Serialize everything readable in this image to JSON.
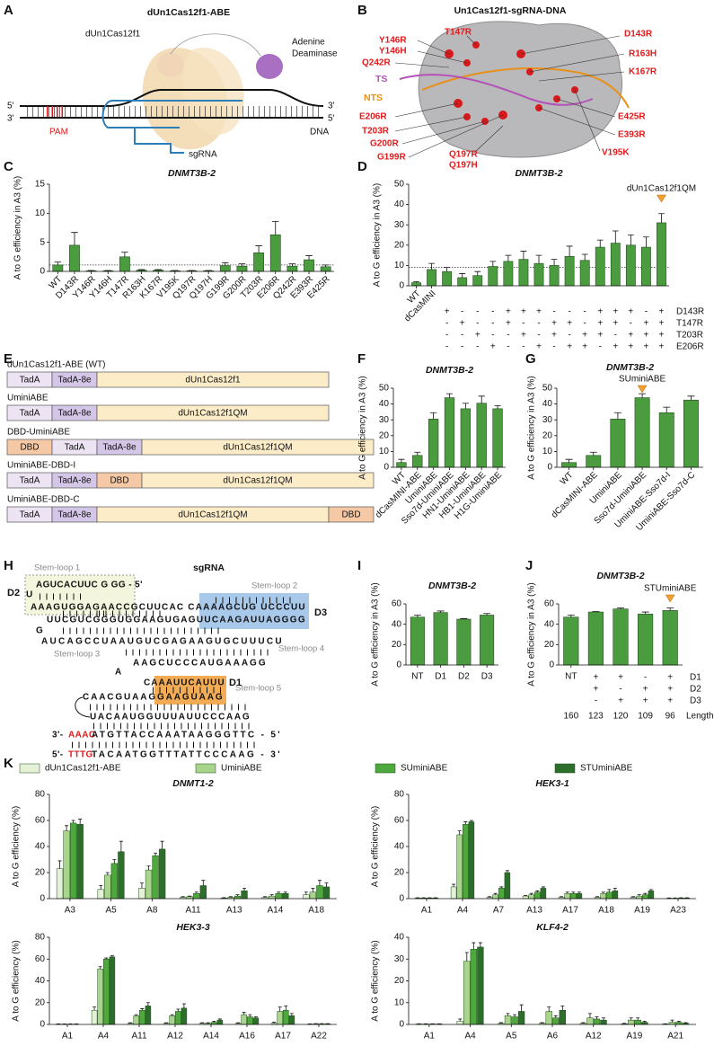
{
  "panel_labels": [
    "A",
    "B",
    "C",
    "D",
    "E",
    "F",
    "G",
    "H",
    "I",
    "J",
    "K"
  ],
  "diagram_a": {
    "title": "dUn1Cas12f1-ABE",
    "protein_label": "dUn1Cas12f1",
    "deaminase_label": [
      "Adenine",
      "Deaminase"
    ],
    "ends": [
      "5'",
      "3'",
      "3'",
      "5'"
    ],
    "pam_label": "PAM",
    "dna_label": "DNA",
    "sgrna_label": "sgRNA"
  },
  "diagram_b": {
    "title": "Un1Cas12f1-sgRNA-DNA",
    "labels": [
      "Y146R",
      "Y146H",
      "T147R",
      "D143R",
      "Q242R",
      "R163H",
      "K167R",
      "TS",
      "NTS",
      "E206R",
      "T203R",
      "G200R",
      "G199R",
      "Q197R",
      "Q197H",
      "E425R",
      "E393R",
      "V195K"
    ]
  },
  "diagram_e": {
    "segment_colors": {
      "TadA": "#ece3f3",
      "TadA-8e": "#d3c6e6",
      "dUn1Cas12f1": "#fcecc8",
      "dUn1Cas12f1QM": "#fcecc8",
      "DBD": "#f6c9a6"
    },
    "constructs": [
      {
        "name": "dUn1Cas12f1-ABE (WT)",
        "segments": [
          "TadA",
          "TadA-8e",
          "dUn1Cas12f1"
        ]
      },
      {
        "name": "UminiABE",
        "segments": [
          "TadA",
          "TadA-8e",
          "dUn1Cas12f1QM"
        ]
      },
      {
        "name": "DBD-UminiABE",
        "segments": [
          "DBD",
          "TadA",
          "TadA-8e",
          "dUn1Cas12f1QM"
        ]
      },
      {
        "name": "UminiABE-DBD-I",
        "segments": [
          "TadA",
          "TadA-8e",
          "DBD",
          "dUn1Cas12f1QM"
        ]
      },
      {
        "name": "UminiABE-DBD-C",
        "segments": [
          "TadA",
          "TadA-8e",
          "dUn1Cas12f1QM",
          "DBD"
        ]
      }
    ]
  },
  "diagram_h": {
    "title": "sgRNA",
    "stem_loops": [
      "Stem-loop 1",
      "Stem-loop 2",
      "Stem-loop 3",
      "Stem-loop 4",
      "Stem-loop 5"
    ],
    "domains": [
      "D1",
      "D2",
      "D3"
    ],
    "sequence": [
      "AGUCACUUC  G GG - 5'",
      "U",
      "AAAGUGGAGAACCGCUUCAC CAAAAGCUG UCCCUU",
      "UUCGUCGGGUGGAAGUGAGUUCAAGAUUAGGGG",
      "G",
      "AUCAGCCUAAUGUCGAGAAGUGCUUUCU",
      "AAGCUCCCAUGAAAGG",
      "A",
      "CAAAUUCAUUU",
      "CAACGUAAGGAAGUAAG",
      "UACAAUGGUUUAUUCCCAAG"
    ],
    "target": [
      "3'-",
      "AAAC",
      "ATGTTACCAAATAAGGGTTC - 5'"
    ],
    "nontarget": [
      "5'-",
      "TTTG",
      "TACAATGGTTTATTCCCAAG - 3'"
    ]
  },
  "chart_data": [
    {
      "type": "bar",
      "title": "DNMT3B-2",
      "ylabel": "A to G efficiency in A3 (%)",
      "color": "#4a9c3f",
      "categories": [
        "WT",
        "D143R",
        "Y146R",
        "Y146H",
        "T147R",
        "R163H",
        "K167R",
        "V195K",
        "Q197R",
        "Q197H",
        "G199R",
        "G200R",
        "T203R",
        "E206R",
        "Q242R",
        "E393R",
        "E425R"
      ],
      "values": [
        1.1,
        4.5,
        0.1,
        0.1,
        2.5,
        0.2,
        0.2,
        0.1,
        0.1,
        0.1,
        1.0,
        0.9,
        3.2,
        6.3,
        0.9,
        2.0,
        0.8
      ],
      "errors": [
        0.5,
        2.2,
        0.05,
        0.05,
        0.8,
        0.1,
        0.1,
        0.05,
        0.05,
        0.05,
        0.5,
        0.4,
        1.2,
        2.3,
        0.4,
        0.7,
        0.3
      ],
      "reference_line": 1.1,
      "ylim": [
        0,
        15
      ],
      "yticks": [
        0,
        5,
        10,
        15
      ]
    },
    {
      "type": "bar",
      "title": "DNMT3B-2",
      "ylabel": "A to G efficiency in A3 (%)",
      "color": "#4a9c3f",
      "categories": [
        "WT",
        "dCasMINI",
        null,
        null,
        null,
        null,
        null,
        null,
        null,
        null,
        null,
        null,
        null,
        null,
        null,
        null,
        null
      ],
      "values": [
        1.5,
        8,
        7,
        4,
        5,
        9.5,
        12,
        13,
        11,
        10,
        14.5,
        12.5,
        19,
        21,
        20,
        19,
        31
      ],
      "errors": [
        0.5,
        3,
        2,
        2,
        2,
        2.5,
        3,
        4,
        4,
        3,
        5,
        3,
        3.5,
        6,
        5,
        5,
        4.5
      ],
      "reference_line": 9,
      "ylim": [
        0,
        50
      ],
      "yticks": [
        0,
        10,
        20,
        30,
        40,
        50
      ],
      "annotation": {
        "text": "dUn1Cas12f1QM",
        "index": 16
      },
      "matrix": {
        "rows": [
          "D143R",
          "T147R",
          "T203R",
          "E206R"
        ],
        "cells": [
          [
            null,
            null,
            "+",
            "-",
            "-",
            "-",
            "+",
            "+",
            "+",
            "-",
            "-",
            "-",
            "+",
            "+",
            "+",
            "-",
            "+"
          ],
          [
            null,
            null,
            "-",
            "+",
            "-",
            "-",
            "+",
            "-",
            "-",
            "+",
            "+",
            "-",
            "+",
            "+",
            "-",
            "+",
            "+"
          ],
          [
            null,
            null,
            "-",
            "-",
            "+",
            "-",
            "-",
            "+",
            "-",
            "+",
            "-",
            "+",
            "+",
            "-",
            "+",
            "+",
            "+"
          ],
          [
            null,
            null,
            "-",
            "-",
            "-",
            "+",
            "-",
            "-",
            "+",
            "-",
            "+",
            "+",
            "-",
            "+",
            "+",
            "+",
            "+"
          ]
        ]
      }
    },
    {
      "type": "bar",
      "title": "DNMT3B-2",
      "ylabel": "A to G efficiency in A3 (%)",
      "color": "#4a9c3f",
      "categories": [
        "WT",
        "dCasMINI-ABE",
        "UminiABE",
        "Sso7d-UminiABE",
        "HN1-UminiABE",
        "HB1-UminiABE",
        "H1G-UminiABE"
      ],
      "values": [
        3,
        7.5,
        30.5,
        44,
        37,
        40.5,
        37
      ],
      "errors": [
        2,
        2,
        4,
        2.5,
        3.5,
        4.5,
        2
      ],
      "ylim": [
        0,
        50
      ],
      "yticks": [
        0,
        10,
        20,
        30,
        40,
        50
      ]
    },
    {
      "type": "bar",
      "title": "DNMT3B-2",
      "ylabel": "A to G efficiency in A3 (%)",
      "color": "#4a9c3f",
      "categories": [
        "WT",
        "dCasMINI-ABE",
        "UminiABE",
        "Sso7d-UminiABE",
        "UminiABE-Sso7d-I",
        "UminiABE-Sso7d-C"
      ],
      "values": [
        3,
        7.5,
        30.5,
        44,
        34.5,
        42.5
      ],
      "errors": [
        2,
        2,
        4,
        2.5,
        3.5,
        2.5
      ],
      "annotation": {
        "text": "SUminiABE",
        "index": 3
      },
      "ylim": [
        0,
        50
      ],
      "yticks": [
        0,
        10,
        20,
        30,
        40,
        50
      ]
    },
    {
      "type": "bar",
      "title": "DNMT3B-2",
      "ylabel": "A to G efficiency in A3 (%)",
      "color": "#4a9c3f",
      "categories": [
        "NT",
        "D1",
        "D2",
        "D3"
      ],
      "values": [
        47,
        51.5,
        45,
        49
      ],
      "errors": [
        2,
        1.5,
        0.5,
        1.5
      ],
      "ylim": [
        0,
        60
      ],
      "yticks": [
        0,
        20,
        40,
        60
      ]
    },
    {
      "type": "bar",
      "title": "DNMT3B-2",
      "ylabel": "A to G efficiency in A3 (%)",
      "color": "#4a9c3f",
      "categories": [
        "NT",
        null,
        null,
        null,
        null
      ],
      "values": [
        47,
        52,
        55,
        50,
        53.5
      ],
      "errors": [
        2,
        0.5,
        1,
        2,
        2.5
      ],
      "annotation": {
        "text": "STUminiABE",
        "index": 4
      },
      "matrix": {
        "rows": [
          "D1",
          "D2",
          "D3"
        ],
        "cells": [
          [
            null,
            "+",
            "+",
            "-",
            "+"
          ],
          [
            null,
            "+",
            "-",
            "+",
            "+"
          ],
          [
            null,
            "-",
            "+",
            "+",
            "+"
          ]
        ]
      },
      "lengths": [
        160,
        123,
        120,
        109,
        96
      ],
      "lengths_label": "Length (nt)",
      "ylim": [
        0,
        60
      ],
      "yticks": [
        0,
        20,
        40,
        60
      ]
    },
    {
      "type": "grouped_bar",
      "title": "DNMT1-2",
      "ylabel": "A to G efficiency (%)",
      "categories": [
        "A3",
        "A5",
        "A8",
        "A11",
        "A13",
        "A14",
        "A18"
      ],
      "series": [
        {
          "name": "dUn1Cas12f1-ABE",
          "color": "#e4f1d6",
          "values": [
            23,
            7,
            8,
            1,
            0.5,
            1,
            3
          ],
          "errors": [
            6,
            3,
            4,
            0.5,
            0.3,
            0.5,
            2
          ]
        },
        {
          "name": "UminiABE",
          "color": "#a8d48b",
          "values": [
            52,
            18,
            22,
            1.5,
            1,
            2,
            5
          ],
          "errors": [
            4,
            2,
            3,
            0.5,
            0.5,
            1,
            3
          ]
        },
        {
          "name": "SUminiABE",
          "color": "#4ea83e",
          "values": [
            58,
            27,
            33,
            4,
            2,
            4,
            10
          ],
          "errors": [
            2,
            3,
            2,
            1,
            1,
            1,
            4
          ]
        },
        {
          "name": "STUminiABE",
          "color": "#2d6e2c",
          "values": [
            57,
            36,
            38,
            10,
            6,
            4,
            9
          ],
          "errors": [
            4,
            8,
            6,
            4,
            2,
            1,
            3
          ]
        }
      ],
      "ylim": [
        0,
        80
      ],
      "yticks": [
        0,
        20,
        40,
        60,
        80
      ]
    },
    {
      "type": "grouped_bar",
      "title": "HEK3-1",
      "ylabel": "A to G efficiency (%)",
      "categories": [
        "A1",
        "A4",
        "A7",
        "A13",
        "A17",
        "A18",
        "A19",
        "A23"
      ],
      "series": [
        {
          "color": "#e4f1d6",
          "values": [
            0.5,
            9,
            1,
            2,
            1,
            1,
            1,
            0.3
          ],
          "errors": [
            0.2,
            2,
            0.5,
            0.5,
            0.5,
            0.5,
            0.5,
            0.2
          ]
        },
        {
          "color": "#a8d48b",
          "values": [
            0.5,
            49,
            3,
            3,
            4,
            4,
            2,
            0.3
          ],
          "errors": [
            0.2,
            3,
            1,
            1,
            1,
            1,
            1,
            0.2
          ]
        },
        {
          "color": "#4ea83e",
          "values": [
            0.5,
            57,
            8,
            5,
            4,
            5,
            3,
            0.5
          ],
          "errors": [
            0.2,
            2,
            1,
            1,
            1,
            2,
            1,
            0.2
          ]
        },
        {
          "color": "#2d6e2c",
          "values": [
            0.5,
            59,
            20,
            8,
            4,
            6,
            6,
            0.5
          ],
          "errors": [
            0.2,
            1,
            1.5,
            1,
            1,
            2,
            1,
            0.2
          ]
        }
      ],
      "ylim": [
        0,
        80
      ],
      "yticks": [
        0,
        20,
        40,
        60,
        80
      ]
    },
    {
      "type": "grouped_bar",
      "title": "HEK3-3",
      "ylabel": "A to G efficiency (%)",
      "categories": [
        "A1",
        "A4",
        "A11",
        "A12",
        "A14",
        "A16",
        "A17",
        "A22"
      ],
      "series": [
        {
          "color": "#e4f1d6",
          "values": [
            0.3,
            13,
            1,
            1,
            1,
            1,
            1,
            0.3
          ],
          "errors": [
            0.2,
            3,
            0.5,
            0.5,
            0.5,
            0.5,
            1,
            0.2
          ]
        },
        {
          "color": "#a8d48b",
          "values": [
            0.3,
            51,
            8,
            8,
            1,
            9,
            12,
            0.5
          ],
          "errors": [
            0.2,
            2,
            1,
            1,
            0.5,
            2,
            4,
            0.2
          ]
        },
        {
          "color": "#4ea83e",
          "values": [
            0.3,
            60,
            13,
            12,
            2,
            7,
            13,
            0.5
          ],
          "errors": [
            0.2,
            1,
            1.5,
            2,
            1,
            2,
            4,
            0.2
          ]
        },
        {
          "color": "#2d6e2c",
          "values": [
            0.3,
            62,
            17,
            15,
            4,
            6,
            8,
            0.5
          ],
          "errors": [
            0.2,
            1,
            3,
            4,
            1,
            1,
            2,
            0.2
          ]
        }
      ],
      "ylim": [
        0,
        80
      ],
      "yticks": [
        0,
        20,
        40,
        60,
        80
      ]
    },
    {
      "type": "grouped_bar",
      "title": "KLF4-2",
      "ylabel": "A to G efficiency (%)",
      "categories": [
        "A1",
        "A4",
        "A5",
        "A6",
        "A12",
        "A19",
        "A21"
      ],
      "series": [
        {
          "color": "#e4f1d6",
          "values": [
            0.2,
            1.5,
            0.5,
            0.5,
            0.5,
            0.3,
            0.2
          ],
          "errors": [
            0.1,
            1,
            0.3,
            0.3,
            0.3,
            0.2,
            0.1
          ]
        },
        {
          "color": "#a8d48b",
          "values": [
            0.2,
            29,
            4,
            6,
            3,
            2,
            1
          ],
          "errors": [
            0.1,
            4,
            1,
            2,
            2,
            1,
            1
          ]
        },
        {
          "color": "#4ea83e",
          "values": [
            0.2,
            34.5,
            3.5,
            3,
            2.5,
            2,
            1
          ],
          "errors": [
            0.1,
            3,
            1,
            1,
            1,
            1,
            0.5
          ]
        },
        {
          "color": "#2d6e2c",
          "values": [
            0.2,
            35.5,
            6,
            6.5,
            2,
            1,
            0.5
          ],
          "errors": [
            0.1,
            2,
            3,
            2,
            1,
            0.5,
            0.3
          ]
        }
      ],
      "ylim": [
        0,
        40
      ],
      "yticks": [
        0,
        10,
        20,
        30,
        40
      ]
    }
  ]
}
